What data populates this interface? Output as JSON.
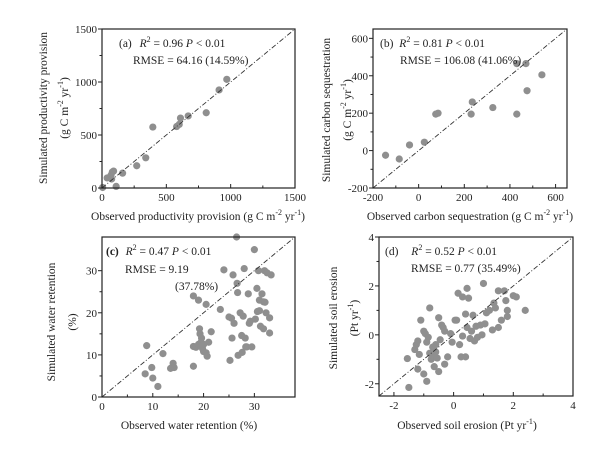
{
  "chart_data": [
    {
      "type": "scatter",
      "panel": "(a)",
      "title": "",
      "xlabel": "Observed productivity provision (g C m-2 yr-1)",
      "xlabel_parts": [
        "Observed productivity provision (g C m",
        "-2",
        " yr",
        "-1",
        ")"
      ],
      "ylabel_line1": "Simulated productivity provision",
      "ylabel_line2_parts": [
        "(g C m",
        "-2",
        " yr",
        "-1",
        ")"
      ],
      "xlim": [
        0,
        1500
      ],
      "ylim": [
        0,
        1500
      ],
      "xticks": [
        0,
        500,
        1000,
        1500
      ],
      "yticks": [
        0,
        500,
        1000,
        1500
      ],
      "xtick_labels": [
        "0",
        "500",
        "1000",
        "1500"
      ],
      "ytick_labels": [
        "0",
        "500",
        "1000",
        "1500"
      ],
      "annotation": {
        "r2_label": "R",
        "r2_sup": "2",
        "r2_value": " = 0.96  ",
        "p_label": "P",
        "p_value": " < 0.01",
        "rmse": "RMSE = 64.16 (14.59%)"
      },
      "reference_line": "1:1",
      "points": [
        [
          5,
          5
        ],
        [
          40,
          95
        ],
        [
          70,
          120
        ],
        [
          80,
          150
        ],
        [
          90,
          160
        ],
        [
          75,
          85
        ],
        [
          110,
          15
        ],
        [
          160,
          140
        ],
        [
          270,
          210
        ],
        [
          340,
          285
        ],
        [
          395,
          575
        ],
        [
          580,
          580
        ],
        [
          600,
          600
        ],
        [
          610,
          660
        ],
        [
          670,
          680
        ],
        [
          810,
          710
        ],
        [
          910,
          925
        ],
        [
          970,
          1025
        ]
      ]
    },
    {
      "type": "scatter",
      "panel": "(b)",
      "title": "",
      "xlabel_parts": [
        "Observed carbon sequestration (g C m",
        "-2",
        " yr",
        "-1",
        ")"
      ],
      "ylabel_line1": "Simulated  carbon sequestration",
      "ylabel_line2_parts": [
        "(g C m",
        "-2",
        " yr",
        "-1",
        ")"
      ],
      "xlim": [
        -200,
        650
      ],
      "ylim": [
        -200,
        650
      ],
      "xticks": [
        -200,
        0,
        200,
        400,
        600
      ],
      "yticks": [
        -200,
        0,
        200,
        400,
        600
      ],
      "xtick_labels": [
        "-200",
        "0",
        "200",
        "400",
        "600"
      ],
      "ytick_labels": [
        "-200",
        "0",
        "200",
        "400",
        "600"
      ],
      "annotation": {
        "r2_label": "R",
        "r2_sup": "2",
        "r2_value": " = 0.81  ",
        "p_label": "P",
        "p_value": " < 0.01",
        "rmse": "RMSE = 106.08 (41.06%)"
      },
      "reference_line": "1:1",
      "points": [
        [
          -145,
          -25
        ],
        [
          -85,
          -45
        ],
        [
          -40,
          30
        ],
        [
          25,
          45
        ],
        [
          75,
          195
        ],
        [
          85,
          200
        ],
        [
          230,
          195
        ],
        [
          235,
          260
        ],
        [
          325,
          230
        ],
        [
          430,
          195
        ],
        [
          430,
          465
        ],
        [
          470,
          465
        ],
        [
          475,
          320
        ],
        [
          540,
          405
        ]
      ]
    },
    {
      "type": "scatter",
      "panel": "(c)",
      "title": "",
      "xlabel_parts": [
        "Observed water retention (%)"
      ],
      "ylabel_line1": "Simulated  water retention",
      "ylabel_line2_parts": [
        "(%)"
      ],
      "xlim": [
        0,
        38
      ],
      "ylim": [
        0,
        38
      ],
      "xticks": [
        0,
        10,
        20,
        30
      ],
      "yticks": [
        0,
        10,
        20,
        30
      ],
      "xtick_labels": [
        "0",
        "10",
        "20",
        "30"
      ],
      "ytick_labels": [
        "0",
        "10",
        "20",
        "30"
      ],
      "annotation": {
        "r2_label": "R",
        "r2_sup": "2",
        "r2_value": " = 0.47 ",
        "p_label": "P",
        "p_value": " < 0.01",
        "rmse": "RMSE = 9.19",
        "rmse_pct": "(37.78%)"
      },
      "reference_line": "1:1",
      "points": [
        [
          8.5,
          5.5
        ],
        [
          8.8,
          12.2
        ],
        [
          9.8,
          7
        ],
        [
          10,
          4.5
        ],
        [
          11,
          2.5
        ],
        [
          12,
          10.3
        ],
        [
          13.5,
          6.8
        ],
        [
          14,
          8
        ],
        [
          14.2,
          7
        ],
        [
          18,
          24
        ],
        [
          18,
          7.3
        ],
        [
          18,
          12
        ],
        [
          18.5,
          11.8
        ],
        [
          19,
          23
        ],
        [
          19,
          12.5
        ],
        [
          19.2,
          16.2
        ],
        [
          19.3,
          15
        ],
        [
          19.5,
          13
        ],
        [
          19.6,
          14
        ],
        [
          19.8,
          11.5
        ],
        [
          20,
          12.5
        ],
        [
          20,
          10.8
        ],
        [
          20.5,
          22
        ],
        [
          20.5,
          10.5
        ],
        [
          20.7,
          9.7
        ],
        [
          21,
          13
        ],
        [
          21.5,
          15.5
        ],
        [
          23.3,
          20.8
        ],
        [
          24,
          30.2
        ],
        [
          25,
          19
        ],
        [
          25.2,
          8.7
        ],
        [
          25.5,
          18.7
        ],
        [
          25.6,
          14
        ],
        [
          25.8,
          29
        ],
        [
          26,
          17.5
        ],
        [
          26.5,
          38
        ],
        [
          26.6,
          27
        ],
        [
          26.7,
          24.8
        ],
        [
          26.8,
          9.9
        ],
        [
          27.2,
          20
        ],
        [
          27.5,
          14.6
        ],
        [
          27.6,
          10.6
        ],
        [
          27.8,
          19.2
        ],
        [
          28,
          30.5
        ],
        [
          28.2,
          14
        ],
        [
          28.3,
          11.9
        ],
        [
          28.5,
          11.9
        ],
        [
          28.8,
          24.5
        ],
        [
          29,
          17.5
        ],
        [
          29.2,
          18
        ],
        [
          29.5,
          11.9
        ],
        [
          30,
          35
        ],
        [
          30.2,
          18.5
        ],
        [
          30.5,
          25.8
        ],
        [
          30.6,
          20.3
        ],
        [
          30.8,
          30
        ],
        [
          31,
          23
        ],
        [
          31,
          20.5
        ],
        [
          31.2,
          16.8
        ],
        [
          31.5,
          24.5
        ],
        [
          31.8,
          22.6
        ],
        [
          31.8,
          16.2
        ],
        [
          32,
          30
        ],
        [
          32.1,
          22.5
        ],
        [
          32.3,
          20
        ],
        [
          32.5,
          29.5
        ],
        [
          33,
          18.8
        ],
        [
          33,
          15.2
        ],
        [
          33.3,
          29
        ]
      ]
    },
    {
      "type": "scatter",
      "panel": "(d)",
      "title": "",
      "xlabel_parts": [
        "Observed soil erosion  (Pt yr",
        "-1",
        ")"
      ],
      "ylabel_line1": "Simulated  soil erosion",
      "ylabel_line2_parts": [
        "(Pt yr",
        "-1",
        ")"
      ],
      "xlim": [
        -2.5,
        4
      ],
      "ylim": [
        -2.5,
        4
      ],
      "xticks": [
        -2,
        0,
        2,
        4
      ],
      "yticks": [
        -2,
        0,
        2,
        4
      ],
      "xtick_labels": [
        "-2",
        "0",
        "2",
        "4"
      ],
      "ytick_labels": [
        "-2",
        "0",
        "2",
        "4"
      ],
      "annotation": {
        "r2_label": "R",
        "r2_sup": "2",
        "r2_value": " = 0.52  ",
        "p_label": "P",
        "p_value": " < 0.01",
        "rmse": "RMSE = 0.77 (35.49%)"
      },
      "reference_line": "1:1",
      "points": [
        [
          -1.5,
          -2.15
        ],
        [
          -1.55,
          -0.97
        ],
        [
          -1.3,
          -0.6
        ],
        [
          -1.25,
          -0.4
        ],
        [
          -1.2,
          -0.25
        ],
        [
          -1.15,
          -0.8
        ],
        [
          -1.2,
          -1.4
        ],
        [
          -1.1,
          0.6
        ],
        [
          -1.0,
          0.15
        ],
        [
          -0.95,
          0.05
        ],
        [
          -1,
          -1.6
        ],
        [
          -0.9,
          -1.9
        ],
        [
          -0.9,
          -0.3
        ],
        [
          -0.85,
          -0.1
        ],
        [
          -0.8,
          1.1
        ],
        [
          -0.8,
          -0.75
        ],
        [
          -0.75,
          -1.0
        ],
        [
          -0.7,
          -0.5
        ],
        [
          -0.7,
          -0.85
        ],
        [
          -0.65,
          -1.3
        ],
        [
          -0.6,
          -0.4
        ],
        [
          -0.6,
          -0.7
        ],
        [
          -0.55,
          -0.95
        ],
        [
          -0.5,
          0.7
        ],
        [
          -0.5,
          -1.5
        ],
        [
          -0.45,
          -0.2
        ],
        [
          -0.4,
          0.4
        ],
        [
          -0.35,
          0.3
        ],
        [
          -0.3,
          -1.2
        ],
        [
          -0.3,
          0.15
        ],
        [
          -0.2,
          -0.9
        ],
        [
          -0.1,
          0.05
        ],
        [
          -0.05,
          -0.3
        ],
        [
          0.05,
          0.6
        ],
        [
          0.1,
          0.6
        ],
        [
          0.15,
          1.7
        ],
        [
          0.2,
          -0.4
        ],
        [
          0.25,
          -0.9
        ],
        [
          0.3,
          1.55
        ],
        [
          0.3,
          -0.05
        ],
        [
          0.4,
          0.85
        ],
        [
          0.4,
          -0.9
        ],
        [
          0.45,
          1.9
        ],
        [
          0.45,
          0.3
        ],
        [
          0.5,
          1.5
        ],
        [
          0.55,
          -0.15
        ],
        [
          0.6,
          0.15
        ],
        [
          0.65,
          0.8
        ],
        [
          0.7,
          -0.25
        ],
        [
          0.75,
          0.35
        ],
        [
          0.8,
          -0.1
        ],
        [
          0.9,
          0.4
        ],
        [
          0.95,
          0.0
        ],
        [
          1.0,
          2.1
        ],
        [
          1.05,
          0.45
        ],
        [
          1.1,
          0.9
        ],
        [
          1.2,
          1.0
        ],
        [
          1.3,
          0.2
        ],
        [
          1.35,
          1.3
        ],
        [
          1.4,
          1.1
        ],
        [
          1.5,
          0.3
        ],
        [
          1.5,
          1.8
        ],
        [
          1.6,
          0.6
        ],
        [
          1.7,
          1.8
        ],
        [
          1.75,
          1.4
        ],
        [
          1.8,
          0.75
        ],
        [
          1.8,
          1.0
        ],
        [
          2.0,
          1.6
        ],
        [
          2.1,
          1.55
        ],
        [
          2.4,
          1.0
        ]
      ]
    }
  ]
}
